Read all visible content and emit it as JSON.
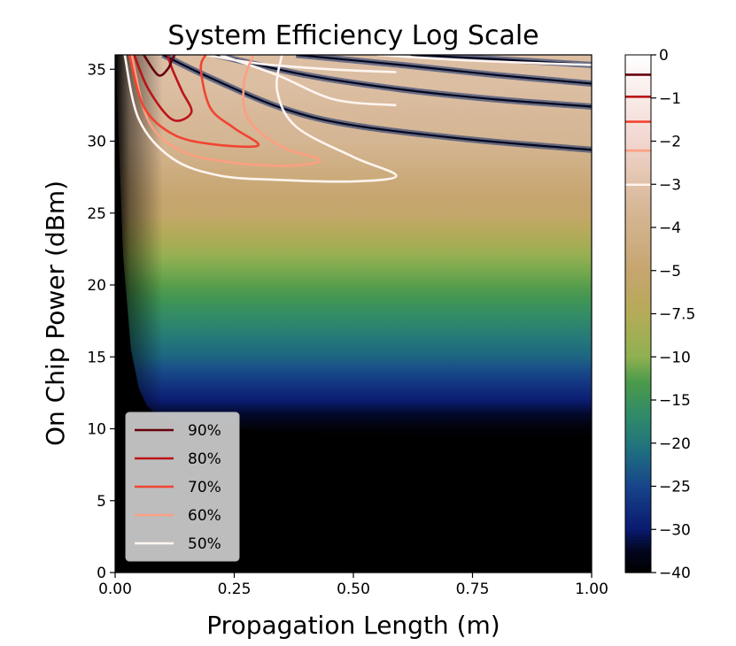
{
  "chart_data": {
    "type": "heatmap",
    "title": "System Efficiency Log Scale",
    "xlabel": "Propagation Length (m)",
    "ylabel": "On Chip Power (dBm)",
    "xlim": [
      0,
      1
    ],
    "ylim": [
      0,
      36
    ],
    "x_ticks": [
      {
        "value": 0,
        "label": "0.00"
      },
      {
        "value": 0.25,
        "label": "0.25"
      },
      {
        "value": 0.5,
        "label": "0.50"
      },
      {
        "value": 0.75,
        "label": "0.75"
      },
      {
        "value": 1,
        "label": "1.00"
      }
    ],
    "y_ticks": [
      {
        "value": 0,
        "label": "0"
      },
      {
        "value": 5,
        "label": "5"
      },
      {
        "value": 10,
        "label": "10"
      },
      {
        "value": 15,
        "label": "15"
      },
      {
        "value": 20,
        "label": "20"
      },
      {
        "value": 25,
        "label": "25"
      },
      {
        "value": 30,
        "label": "30"
      },
      {
        "value": 35,
        "label": "35"
      }
    ],
    "colorbar": {
      "range": [
        -40,
        0
      ],
      "ticks": [
        {
          "value": 0,
          "label": "0"
        },
        {
          "value": -1,
          "label": "−1"
        },
        {
          "value": -2,
          "label": "−2"
        },
        {
          "value": -3,
          "label": "−3"
        },
        {
          "value": -4,
          "label": "−4"
        },
        {
          "value": -5,
          "label": "−5"
        },
        {
          "value": -7.5,
          "label": "−7.5"
        },
        {
          "value": -10,
          "label": "−10"
        },
        {
          "value": -15,
          "label": "−15"
        },
        {
          "value": -20,
          "label": "−20"
        },
        {
          "value": -25,
          "label": "−25"
        },
        {
          "value": -30,
          "label": "−30"
        },
        {
          "value": -40,
          "label": "−40"
        }
      ],
      "contour_marks": [
        {
          "value": -0.46,
          "color": "#67000d"
        },
        {
          "value": -0.97,
          "color": "#bb1419"
        },
        {
          "value": -1.55,
          "color": "#f14432"
        },
        {
          "value": -2.22,
          "color": "#fc9f81"
        },
        {
          "value": -3.01,
          "color": "#fff5f0"
        }
      ]
    },
    "colormap": [
      {
        "value": 0,
        "color": "#ffffff"
      },
      {
        "value": -2,
        "color": "#f2d6d0"
      },
      {
        "value": -3.5,
        "color": "#d7b898"
      },
      {
        "value": -5,
        "color": "#c6a56f"
      },
      {
        "value": -7.5,
        "color": "#b5ab58"
      },
      {
        "value": -10,
        "color": "#8fb051"
      },
      {
        "value": -13,
        "color": "#4a9a4a"
      },
      {
        "value": -17,
        "color": "#2f8a6a"
      },
      {
        "value": -21,
        "color": "#1f6e80"
      },
      {
        "value": -25,
        "color": "#17458a"
      },
      {
        "value": -30,
        "color": "#0a1a70"
      },
      {
        "value": -35,
        "color": "#02061e"
      },
      {
        "value": -40,
        "color": "#000000"
      }
    ],
    "legend": {
      "placement": "lower-left",
      "entries": [
        {
          "label": "90%",
          "color": "#67000d"
        },
        {
          "label": "80%",
          "color": "#bb1419"
        },
        {
          "label": "70%",
          "color": "#f14432"
        },
        {
          "label": "60%",
          "color": "#fc9f81"
        },
        {
          "label": "50%",
          "color": "#fff5f0"
        }
      ]
    },
    "contours": [
      {
        "name": "90%",
        "color": "#67000d",
        "points": [
          [
            0.06,
            36
          ],
          [
            0.09,
            34.6
          ],
          [
            0.11,
            35
          ],
          [
            0.12,
            35.7
          ],
          [
            0.125,
            36
          ]
        ]
      },
      {
        "name": "80%",
        "color": "#bb1419",
        "points": [
          [
            0.04,
            36
          ],
          [
            0.07,
            33.6
          ],
          [
            0.12,
            31.5
          ],
          [
            0.16,
            32.0
          ],
          [
            0.14,
            33.5
          ],
          [
            0.12,
            35
          ],
          [
            0.11,
            36
          ]
        ]
      },
      {
        "name": "70%",
        "color": "#f14432",
        "points": [
          [
            0.03,
            36
          ],
          [
            0.06,
            32.4
          ],
          [
            0.12,
            30.5
          ],
          [
            0.2,
            29.8
          ],
          [
            0.3,
            29.7
          ],
          [
            0.25,
            30.9
          ],
          [
            0.2,
            32.3
          ],
          [
            0.18,
            35
          ],
          [
            0.19,
            36
          ]
        ]
      },
      {
        "name": "60%",
        "color": "#fc9f81",
        "points": [
          [
            0.035,
            36
          ],
          [
            0.07,
            31.4
          ],
          [
            0.14,
            29.3
          ],
          [
            0.25,
            28.5
          ],
          [
            0.37,
            28.3
          ],
          [
            0.43,
            28.7
          ],
          [
            0.35,
            29.6
          ],
          [
            0.28,
            31.5
          ],
          [
            0.27,
            34
          ],
          [
            0.29,
            36
          ]
        ]
      },
      {
        "name": "50%",
        "color": "#fff5f0",
        "points": [
          [
            0.02,
            36
          ],
          [
            0.05,
            31.5
          ],
          [
            0.12,
            28.8
          ],
          [
            0.22,
            27.6
          ],
          [
            0.35,
            27.3
          ],
          [
            0.5,
            27.2
          ],
          [
            0.59,
            27.6
          ],
          [
            0.5,
            28.9
          ],
          [
            0.38,
            31.0
          ],
          [
            0.34,
            33.5
          ],
          [
            0.35,
            36
          ]
        ]
      },
      {
        "name": "50% upper",
        "color": "#fff5f0",
        "points": [
          [
            0.19,
            36
          ],
          [
            0.3,
            35.4
          ],
          [
            0.45,
            35.0
          ],
          [
            0.59,
            34.8
          ]
        ]
      },
      {
        "name": "50% upper 2",
        "color": "#fff5f0",
        "points": [
          [
            0.22,
            36
          ],
          [
            0.34,
            34.6
          ],
          [
            0.46,
            32.9
          ],
          [
            0.59,
            32.5
          ]
        ]
      },
      {
        "name": "50% top right",
        "color": "#fff5f0",
        "points": [
          [
            0.55,
            36
          ],
          [
            0.75,
            35.6
          ],
          [
            1.0,
            35.3
          ]
        ]
      }
    ],
    "minima_lines": [
      {
        "name": "dark band 1",
        "points": [
          [
            0.21,
            36
          ],
          [
            0.4,
            34.6
          ],
          [
            0.6,
            33.6
          ],
          [
            0.8,
            32.9
          ],
          [
            1.0,
            32.4
          ]
        ]
      },
      {
        "name": "dark band 2",
        "points": [
          [
            0.1,
            36
          ],
          [
            0.2,
            34.4
          ],
          [
            0.35,
            32.3
          ],
          [
            0.5,
            31.1
          ],
          [
            0.75,
            30.1
          ],
          [
            1.0,
            29.4
          ]
        ]
      },
      {
        "name": "dark band 3",
        "points": [
          [
            0.38,
            36
          ],
          [
            0.6,
            35.3
          ],
          [
            0.8,
            34.6
          ],
          [
            1.0,
            34.0
          ]
        ]
      },
      {
        "name": "dark band 4",
        "points": [
          [
            0.62,
            36
          ],
          [
            0.8,
            35.7
          ],
          [
            1.0,
            35.3
          ]
        ]
      }
    ]
  }
}
